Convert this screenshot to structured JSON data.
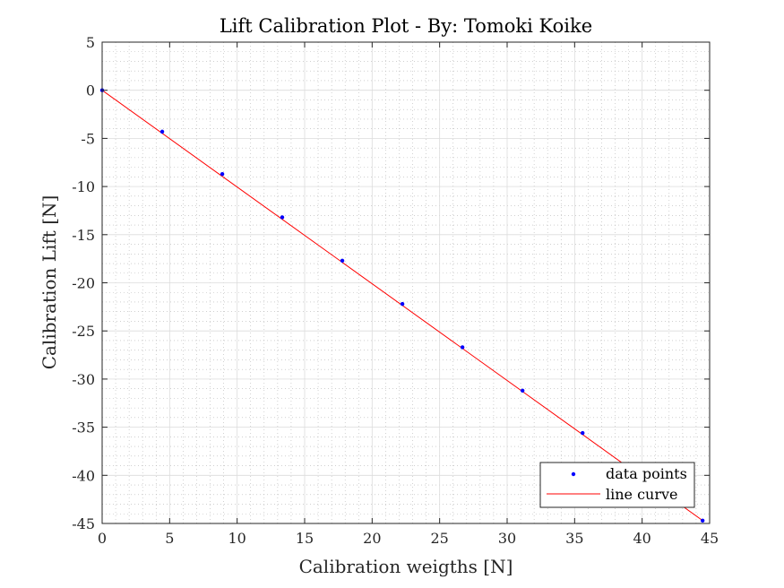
{
  "chart_data": {
    "type": "scatter",
    "title": "Lift Calibration Plot - By: Tomoki Koike",
    "xlabel": "Calibration weigths [N]",
    "ylabel": "Calibration Lift [N]",
    "xlim": [
      0,
      45
    ],
    "ylim": [
      -45,
      5
    ],
    "xticks": [
      0,
      5,
      10,
      15,
      20,
      25,
      30,
      35,
      40,
      45
    ],
    "yticks": [
      5,
      0,
      -5,
      -10,
      -15,
      -20,
      -25,
      -30,
      -35,
      -40,
      -45
    ],
    "xtick_labels": [
      "0",
      "5",
      "10",
      "15",
      "20",
      "25",
      "30",
      "35",
      "40",
      "45"
    ],
    "ytick_labels": [
      "5",
      "0",
      "-5",
      "-10",
      "-15",
      "-20",
      "-25",
      "-30",
      "-35",
      "-40",
      "-45"
    ],
    "grid": true,
    "minor_grid": true,
    "legend_position": "bottom-right",
    "series": [
      {
        "name": "data points",
        "kind": "markers",
        "color": "#0000ff",
        "x": [
          0,
          4.45,
          8.9,
          13.34,
          17.79,
          22.24,
          26.69,
          31.14,
          35.59,
          44.48
        ],
        "y": [
          0,
          -4.3,
          -8.7,
          -13.2,
          -17.7,
          -22.2,
          -26.7,
          -31.2,
          -35.6,
          -44.7
        ]
      },
      {
        "name": "line curve",
        "kind": "line",
        "color": "#ff0000",
        "x": [
          0,
          44.48
        ],
        "y": [
          0,
          -44.7
        ]
      }
    ]
  }
}
